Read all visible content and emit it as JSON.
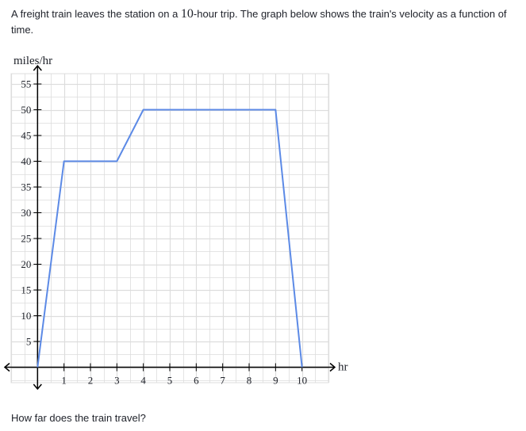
{
  "problem": {
    "text_before": "A freight train leaves the station on a ",
    "trip_hours": "10",
    "text_after": "-hour trip. The graph below shows the train's velocity as a function of time."
  },
  "question": {
    "text": "How far does the train travel?"
  },
  "chart_data": {
    "type": "line",
    "xlabel": "hr",
    "ylabel": "miles/hr",
    "xlim": [
      -1,
      11
    ],
    "ylim": [
      -3,
      57
    ],
    "x_ticks": [
      1,
      2,
      3,
      4,
      5,
      6,
      7,
      8,
      9,
      10
    ],
    "y_ticks": [
      5,
      10,
      15,
      20,
      25,
      30,
      35,
      40,
      45,
      50,
      55
    ],
    "grid_x_step": 0.5,
    "grid_y_step": 2.5,
    "grid": true,
    "series": [
      {
        "x": [
          0,
          1,
          3,
          4,
          9,
          10
        ],
        "y": [
          0,
          40,
          40,
          50,
          50,
          0
        ]
      }
    ],
    "colors": {
      "line": "#5c8ae6",
      "grid": "#dddddd",
      "axis": "#000000"
    }
  }
}
